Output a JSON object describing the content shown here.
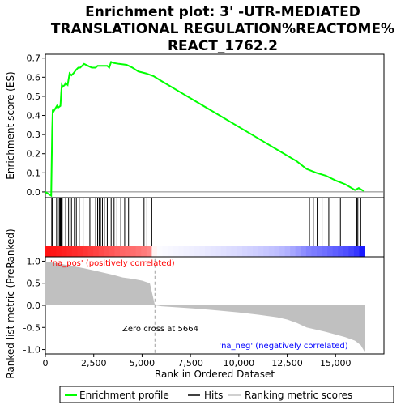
{
  "chart_data": {
    "type": "line",
    "title": "Enrichment plot: 3' -UTR-MEDIATED\nTRANSLATIONAL REGULATION%REACTOME%\nREACT_1762.2",
    "colors": {
      "es_line": "#00ff00",
      "hits": "#000000",
      "metric_fill": "#c0c0c0",
      "frame": "#000000",
      "grid": "#e0e0e0",
      "zero_cross": "#a0a0a0",
      "pos_label": "#ff0000",
      "neg_label": "#0000ff"
    },
    "x_axis": {
      "label": "Rank in Ordered Dataset",
      "range": [
        0,
        17500
      ],
      "ticks": [
        0,
        2500,
        5000,
        7500,
        10000,
        12500,
        15000
      ],
      "tick_labels": [
        "0",
        "2,500",
        "5,000",
        "7,500",
        "10,000",
        "12,500",
        "15,000"
      ]
    },
    "es_panel": {
      "ylabel": "Enrichment score (ES)",
      "ylim": [
        -0.03,
        0.72
      ],
      "ticks": [
        0.0,
        0.1,
        0.2,
        0.3,
        0.4,
        0.5,
        0.6,
        0.7
      ],
      "tick_labels": [
        "0.0",
        "0.1",
        "0.2",
        "0.3",
        "0.4",
        "0.5",
        "0.6",
        "0.7"
      ],
      "curve": {
        "x": [
          0,
          300,
          330,
          350,
          380,
          420,
          600,
          650,
          780,
          820,
          850,
          900,
          1000,
          1050,
          1150,
          1250,
          1350,
          1450,
          1600,
          1700,
          1800,
          1900,
          2000,
          2200,
          2400,
          2600,
          2700,
          2800,
          2900,
          3000,
          3100,
          3200,
          3300,
          3400,
          3500,
          3800,
          4200,
          4500,
          4800,
          5000,
          5200,
          5600,
          6000,
          7000,
          8000,
          9000,
          10000,
          11000,
          12000,
          13000,
          13500,
          14000,
          14500,
          15000,
          15500,
          16000,
          16200,
          16450
        ],
        "y": [
          0.0,
          -0.02,
          0.18,
          0.32,
          0.43,
          0.42,
          0.45,
          0.44,
          0.45,
          0.52,
          0.56,
          0.55,
          0.56,
          0.57,
          0.56,
          0.62,
          0.61,
          0.62,
          0.64,
          0.65,
          0.65,
          0.66,
          0.67,
          0.66,
          0.65,
          0.65,
          0.66,
          0.66,
          0.66,
          0.66,
          0.66,
          0.66,
          0.65,
          0.68,
          0.675,
          0.67,
          0.665,
          0.65,
          0.63,
          0.625,
          0.62,
          0.605,
          0.58,
          0.52,
          0.46,
          0.4,
          0.34,
          0.28,
          0.22,
          0.16,
          0.12,
          0.1,
          0.085,
          0.06,
          0.04,
          0.01,
          0.02,
          0.005
        ]
      }
    },
    "hits_panel": {
      "positions": [
        330,
        370,
        580,
        650,
        720,
        760,
        790,
        820,
        870,
        1050,
        1200,
        1350,
        1500,
        1600,
        1750,
        1950,
        2300,
        2600,
        2700,
        2780,
        2850,
        2950,
        3050,
        3200,
        3400,
        3550,
        3700,
        3900,
        4100,
        4300,
        5100,
        5250,
        5500,
        13650,
        13850,
        14050,
        14300,
        14650,
        15250,
        16100,
        16150,
        16300
      ]
    },
    "metric_panel": {
      "ylabel": "Ranked list metric (PreRanked)",
      "ylim": [
        -1.1,
        1.1
      ],
      "ticks": [
        -1.0,
        -0.5,
        0.0,
        0.5,
        1.0
      ],
      "tick_labels": [
        "-1.0",
        "-0.5",
        "0.0",
        "0.5",
        "1.0"
      ],
      "profile": {
        "x": [
          0,
          100,
          500,
          1000,
          1500,
          2000,
          2500,
          3000,
          3500,
          4000,
          4500,
          5000,
          5400,
          5664,
          6000,
          7000,
          8000,
          9000,
          10000,
          11000,
          12000,
          12500,
          13000,
          13500,
          14000,
          14500,
          15000,
          15500,
          16000,
          16300,
          16500
        ],
        "y": [
          1.0,
          0.98,
          0.96,
          0.92,
          0.88,
          0.84,
          0.79,
          0.74,
          0.69,
          0.63,
          0.6,
          0.56,
          0.5,
          0.0,
          -0.02,
          -0.05,
          -0.08,
          -0.12,
          -0.16,
          -0.21,
          -0.27,
          -0.32,
          -0.4,
          -0.5,
          -0.55,
          -0.6,
          -0.66,
          -0.72,
          -0.8,
          -0.9,
          -1.05
        ]
      },
      "zero_cross_label": "Zero cross at 5664",
      "pos_label": "'na_pos' (positively correlated)",
      "neg_label": "'na_neg' (negatively correlated)"
    },
    "legend": {
      "items": [
        {
          "label": "Enrichment profile",
          "color": "#00ff00",
          "style": "line"
        },
        {
          "label": "Hits",
          "color": "#000000",
          "style": "line"
        },
        {
          "label": "Ranking metric scores",
          "color": "#c0c0c0",
          "style": "line"
        }
      ]
    }
  }
}
